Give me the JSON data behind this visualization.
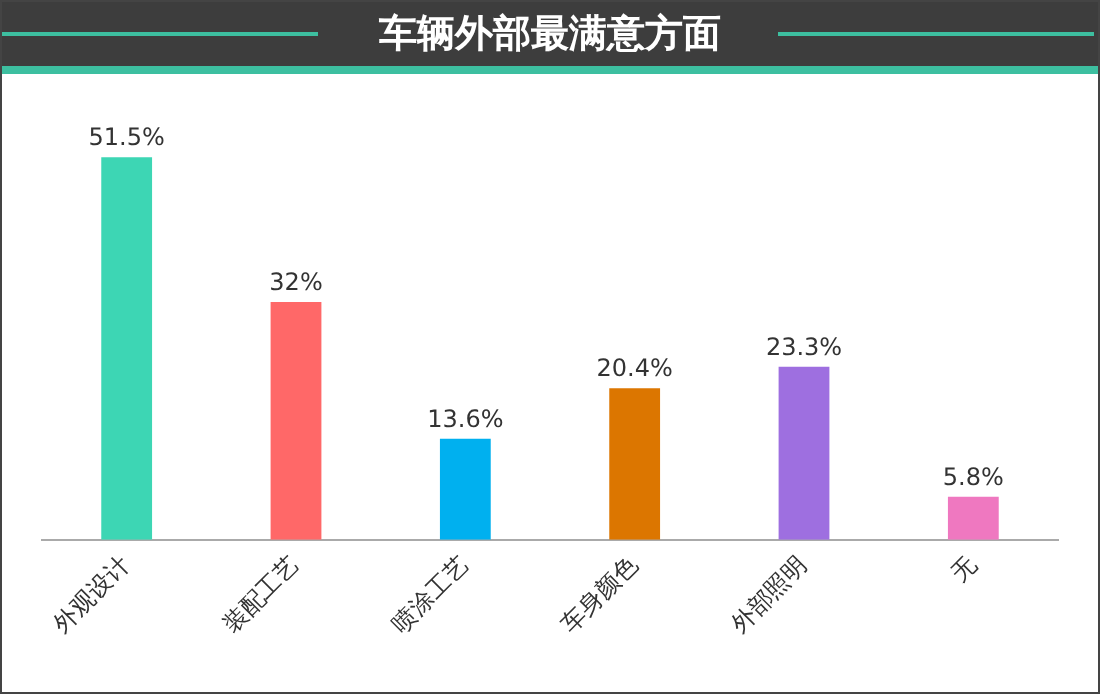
{
  "chart_data": {
    "type": "bar",
    "title": "车辆外部最满意方面",
    "categories": [
      "外观设计",
      "装配工艺",
      "喷涂工艺",
      "车身颜色",
      "外部照明",
      "无"
    ],
    "values": [
      51.5,
      32,
      13.6,
      20.4,
      23.3,
      5.8
    ],
    "colors": [
      "#3dd6b4",
      "#ff6868",
      "#00b0ef",
      "#dc7600",
      "#9e6fe0",
      "#ef78c0"
    ],
    "value_labels": [
      "51.5%",
      "32%",
      "13.6%",
      "20.4%",
      "23.3%",
      "5.8%"
    ],
    "grid": false,
    "legend": false
  }
}
